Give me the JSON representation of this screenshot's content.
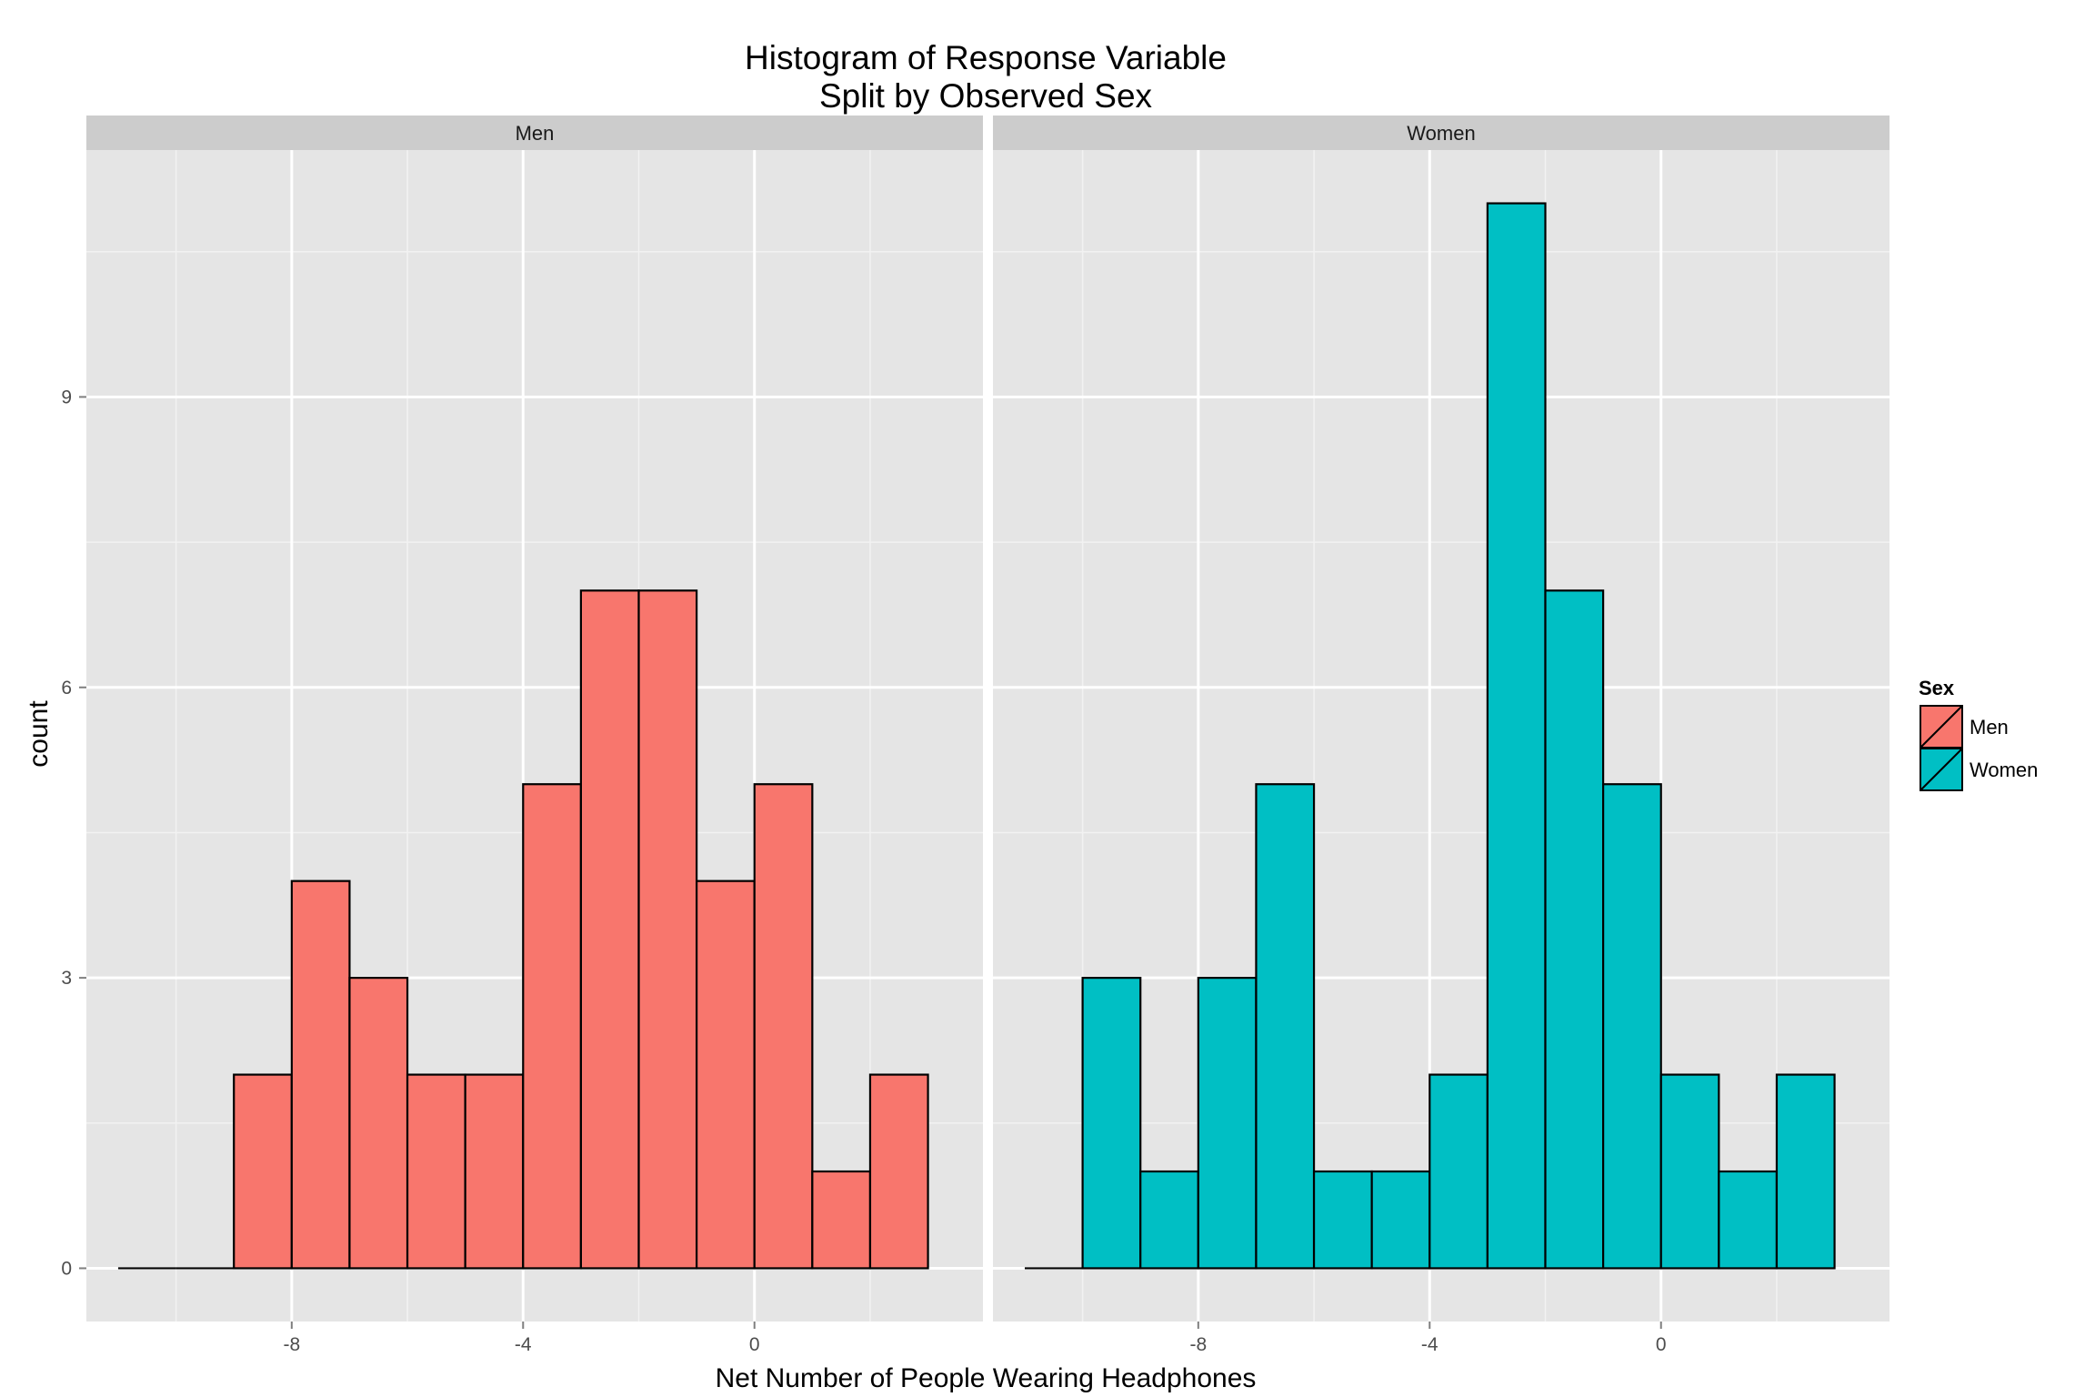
{
  "chart_data": {
    "type": "bar",
    "subtype": "faceted-histogram",
    "title": [
      "Histogram of Response Variable",
      "Split by Observed Sex"
    ],
    "xlabel": "Net Number of People Wearing Headphones",
    "ylabel": "count",
    "x_ticks": [
      -8,
      -4,
      0
    ],
    "x_ticks_labels": [
      "-8",
      "-4",
      "0"
    ],
    "y_ticks": [
      0,
      3,
      6,
      9
    ],
    "y_ticks_labels": [
      "0",
      "3",
      "6",
      "9"
    ],
    "xlim": [
      -11.55,
      3.95
    ],
    "ylim": [
      -0.55,
      11.55
    ],
    "grid": true,
    "bin_width": 1,
    "bin_starts": [
      -11,
      -10,
      -9,
      -8,
      -7,
      -6,
      -5,
      -4,
      -3,
      -2,
      -1,
      0,
      1,
      2
    ],
    "legend": {
      "title": "Sex",
      "position": "right",
      "entries": [
        "Men",
        "Women"
      ]
    },
    "series": [
      {
        "name": "Men",
        "color": "#F8766D",
        "counts": [
          0,
          0,
          2,
          4,
          3,
          2,
          2,
          5,
          7,
          7,
          4,
          5,
          1,
          2
        ]
      },
      {
        "name": "Women",
        "color": "#00BFC4",
        "counts": [
          0,
          3,
          1,
          3,
          5,
          1,
          1,
          2,
          11,
          7,
          5,
          2,
          1,
          2
        ]
      }
    ]
  },
  "colors": {
    "panel_background": "#E5E5E5",
    "strip_background": "#CCCCCC",
    "grid_major": "#FFFFFF",
    "grid_minor": "#F2F2F2",
    "bar_outline": "#000000"
  }
}
